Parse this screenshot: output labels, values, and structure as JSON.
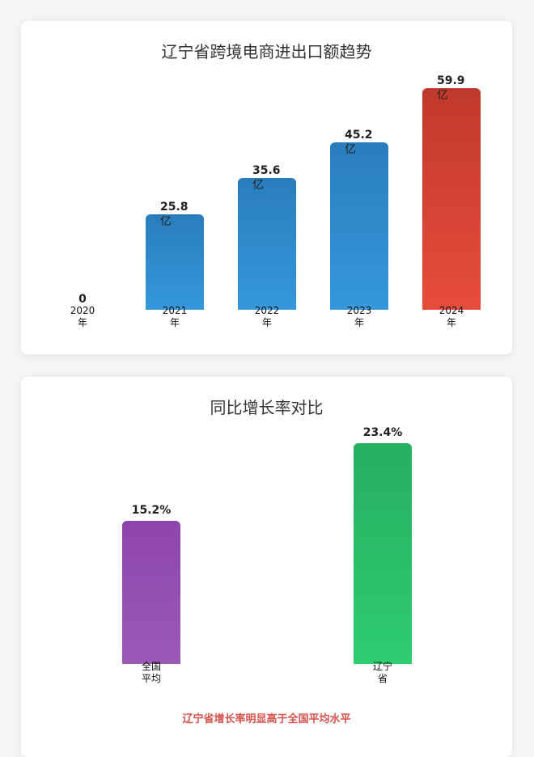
{
  "chart_data": [
    {
      "type": "bar",
      "title": "辽宁省跨境电商进出口额趋势",
      "categories": [
        "2020年",
        "2021年",
        "2022年",
        "2023年",
        "2024年"
      ],
      "values": [
        0,
        25.8,
        35.6,
        45.2,
        59.9
      ],
      "value_labels": [
        "0",
        "25.8",
        "35.6",
        "45.2",
        "59.9"
      ],
      "unit": "亿",
      "highlight_index": 4,
      "colors": {
        "normal_top": "#2a7dbd",
        "normal_bottom": "#3498db",
        "highlight_top": "#c0392b",
        "highlight_bottom": "#e74c3c"
      }
    },
    {
      "type": "bar",
      "title": "同比增长率对比",
      "categories": [
        "全国平均",
        "辽宁省"
      ],
      "values": [
        15.2,
        23.4
      ],
      "value_labels": [
        "15.2%",
        "23.4%"
      ],
      "colors": [
        {
          "top": "#8e44ad",
          "bottom": "#9b59b6"
        },
        {
          "top": "#27ae60",
          "bottom": "#2ecc71"
        }
      ]
    }
  ],
  "note": "辽宁省增长率明显高于全国平均水平"
}
